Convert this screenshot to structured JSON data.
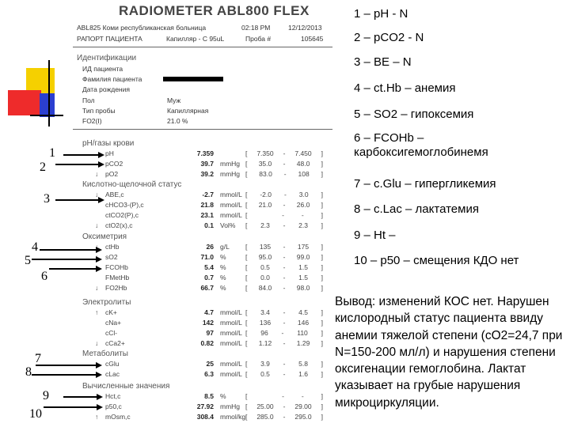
{
  "document": {
    "title": "RADIOMETER ABL800 FLEX",
    "header": {
      "hospital": "ABL825 Коми республиканская больница",
      "report": "РАПОРТ ПАЦИЕНТА",
      "sample_type_code": "Капилляр - С 95uL",
      "time": "02:18 PM",
      "date": "12/12/2013",
      "sample_label": "Проба #",
      "sample_no": "105645"
    },
    "identification": {
      "heading": "Идентификации",
      "fields": [
        {
          "label": "ИД пациента",
          "value": ""
        },
        {
          "label": "Фамилия пациента",
          "value": ""
        },
        {
          "label": "Дата рождения",
          "value": ""
        },
        {
          "label": "Пол",
          "value": "Муж"
        },
        {
          "label": "Тип пробы",
          "value": "Капиллярная"
        },
        {
          "label": "FO2(I)",
          "value": "21.0 %"
        }
      ]
    },
    "sections": [
      {
        "heading": "pH/газы крови",
        "rows": [
          {
            "flag": "",
            "name": "pH",
            "value": "7.359",
            "unit": "",
            "low": "7.350",
            "high": "7.450"
          },
          {
            "flag": "",
            "name": "pCO2",
            "value": "39.7",
            "unit": "mmHg",
            "low": "35.0",
            "high": "48.0"
          },
          {
            "flag": "↓",
            "name": "pO2",
            "value": "39.2",
            "unit": "mmHg",
            "low": "83.0",
            "high": "108"
          }
        ]
      },
      {
        "heading": "Кислотно-щелочной статус",
        "rows": [
          {
            "flag": "↓",
            "name": "ABE,c",
            "value": "-2.7",
            "unit": "mmol/L",
            "low": "-2.0",
            "high": "3.0"
          },
          {
            "flag": "",
            "name": "cHCO3-(P),c",
            "value": "21.8",
            "unit": "mmol/L",
            "low": "21.0",
            "high": "26.0"
          },
          {
            "flag": "",
            "name": "ctCO2(P),c",
            "value": "23.1",
            "unit": "mmol/L",
            "low": "",
            "high": "-"
          },
          {
            "flag": "↓",
            "name": "ctO2(x),c",
            "value": "0.1",
            "unit": "Vol%",
            "low": "2.3",
            "high": "2.3"
          }
        ]
      },
      {
        "heading": "Оксиметрия",
        "rows": [
          {
            "flag": "↓",
            "name": "ctHb",
            "value": "26",
            "unit": "g/L",
            "low": "135",
            "high": "175"
          },
          {
            "flag": "↓",
            "name": "sO2",
            "value": "71.0",
            "unit": "%",
            "low": "95.0",
            "high": "99.0"
          },
          {
            "flag": "↑",
            "name": "FCOHb",
            "value": "5.4",
            "unit": "%",
            "low": "0.5",
            "high": "1.5"
          },
          {
            "flag": "",
            "name": "FMetHb",
            "value": "0.7",
            "unit": "%",
            "low": "0.0",
            "high": "1.5"
          },
          {
            "flag": "↓",
            "name": "FO2Hb",
            "value": "66.7",
            "unit": "%",
            "low": "84.0",
            "high": "98.0"
          }
        ]
      },
      {
        "heading": "Электролиты",
        "rows": [
          {
            "flag": "↑",
            "name": "cK+",
            "value": "4.7",
            "unit": "mmol/L",
            "low": "3.4",
            "high": "4.5"
          },
          {
            "flag": "",
            "name": "cNa+",
            "value": "142",
            "unit": "mmol/L",
            "low": "136",
            "high": "146"
          },
          {
            "flag": "",
            "name": "cCl-",
            "value": "97",
            "unit": "mmol/L",
            "low": "96",
            "high": "110"
          },
          {
            "flag": "↓",
            "name": "cCa2+",
            "value": "0.82",
            "unit": "mmol/L",
            "low": "1.12",
            "high": "1.29"
          }
        ]
      },
      {
        "heading": "Метаболиты",
        "rows": [
          {
            "flag": "↑",
            "name": "cGlu",
            "value": "25",
            "unit": "mmol/L",
            "low": "3.9",
            "high": "5.8"
          },
          {
            "flag": "↑",
            "name": "cLac",
            "value": "6.3",
            "unit": "mmol/L",
            "low": "0.5",
            "high": "1.6"
          }
        ]
      },
      {
        "heading": "Вычисленные значения",
        "rows": [
          {
            "flag": "",
            "name": "Hct,c",
            "value": "8.5",
            "unit": "%",
            "low": "",
            "high": "-"
          },
          {
            "flag": "",
            "name": "p50,c",
            "value": "27.92",
            "unit": "mmHg",
            "low": "25.00",
            "high": "29.00"
          },
          {
            "flag": "↑",
            "name": "mOsm,c",
            "value": "308.4",
            "unit": "mmol/kg",
            "low": "285.0",
            "high": "295.0"
          }
        ]
      }
    ]
  },
  "markers": [
    "1",
    "2",
    "3",
    "4",
    "5",
    "6",
    "7",
    "8",
    "9",
    "10"
  ],
  "legend": [
    "1 – pH - N",
    "2 – pCO2 - N",
    "3 – BE – N",
    "4 – ct.Hb – анемия",
    "5 – SO2 – гипоксемия",
    "6 – FCOHb – карбоксигемоглобинемя",
    "7 – c.Glu – гипергликемия",
    "8 – c.Lac – лактатемия",
    "9 – Ht –",
    "10 – p50 – смещения КДО нет"
  ],
  "conclusion": "Вывод: изменений КОС нет. Нарушен кислородный статус пациента ввиду анемии тяжелой степени (cO2=24,7 при N=150-200 мл/л) и нарушения степени оксигенации гемоглобина. Лактат указывает на грубые нарушения микроциркуляции.",
  "colors": {
    "yellow": "#f5d000",
    "red": "#ee2b2b",
    "blue": "#2b3fd0"
  }
}
